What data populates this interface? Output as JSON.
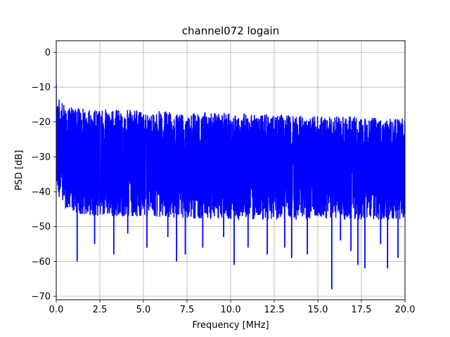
{
  "chart_data": {
    "type": "line",
    "title": "channel072 logain",
    "xlabel": "Frequency [MHz]",
    "ylabel": "PSD [dB]",
    "xlim": [
      0,
      20
    ],
    "ylim": [
      -71,
      3.3
    ],
    "x_ticks": [
      "0.0",
      "2.5",
      "5.0",
      "7.5",
      "10.0",
      "12.5",
      "15.0",
      "17.5",
      "20.0"
    ],
    "y_ticks": [
      "0",
      "−10",
      "−20",
      "−30",
      "−40",
      "−50",
      "−60",
      "−70"
    ],
    "grid": true,
    "series": [
      {
        "color": "#0000ff",
        "upper_envelope": {
          "x": [
            0,
            0.05,
            0.2,
            0.5,
            1,
            2,
            3,
            4,
            5,
            7.5,
            10,
            12.5,
            15,
            17.5,
            20
          ],
          "y": [
            -10,
            -12,
            -14,
            -15.5,
            -16,
            -16.5,
            -16.5,
            -16.5,
            -17,
            -17,
            -17.5,
            -18,
            -18.5,
            -18.5,
            -19
          ]
        },
        "lower_envelope": {
          "x": [
            0,
            0.2,
            0.5,
            1,
            2,
            5,
            10,
            15,
            20
          ],
          "y": [
            -38,
            -42,
            -45,
            -46,
            -47,
            -47,
            -48,
            -48,
            -48
          ]
        },
        "mean_level": -30,
        "deep_dips": [
          {
            "x": 1.2,
            "y": -60
          },
          {
            "x": 2.2,
            "y": -55
          },
          {
            "x": 3.3,
            "y": -58
          },
          {
            "x": 4.1,
            "y": -52
          },
          {
            "x": 5.2,
            "y": -56
          },
          {
            "x": 6.4,
            "y": -53
          },
          {
            "x": 6.9,
            "y": -60
          },
          {
            "x": 7.4,
            "y": -58
          },
          {
            "x": 8.4,
            "y": -56
          },
          {
            "x": 9.6,
            "y": -53
          },
          {
            "x": 10.2,
            "y": -61
          },
          {
            "x": 11.0,
            "y": -56
          },
          {
            "x": 12.1,
            "y": -58
          },
          {
            "x": 13.1,
            "y": -56
          },
          {
            "x": 13.5,
            "y": -59
          },
          {
            "x": 14.4,
            "y": -58
          },
          {
            "x": 15.8,
            "y": -68
          },
          {
            "x": 16.3,
            "y": -54
          },
          {
            "x": 16.9,
            "y": -57
          },
          {
            "x": 17.3,
            "y": -61
          },
          {
            "x": 17.7,
            "y": -62
          },
          {
            "x": 18.6,
            "y": -55
          },
          {
            "x": 19.0,
            "y": -62
          },
          {
            "x": 19.6,
            "y": -59
          }
        ]
      }
    ]
  }
}
